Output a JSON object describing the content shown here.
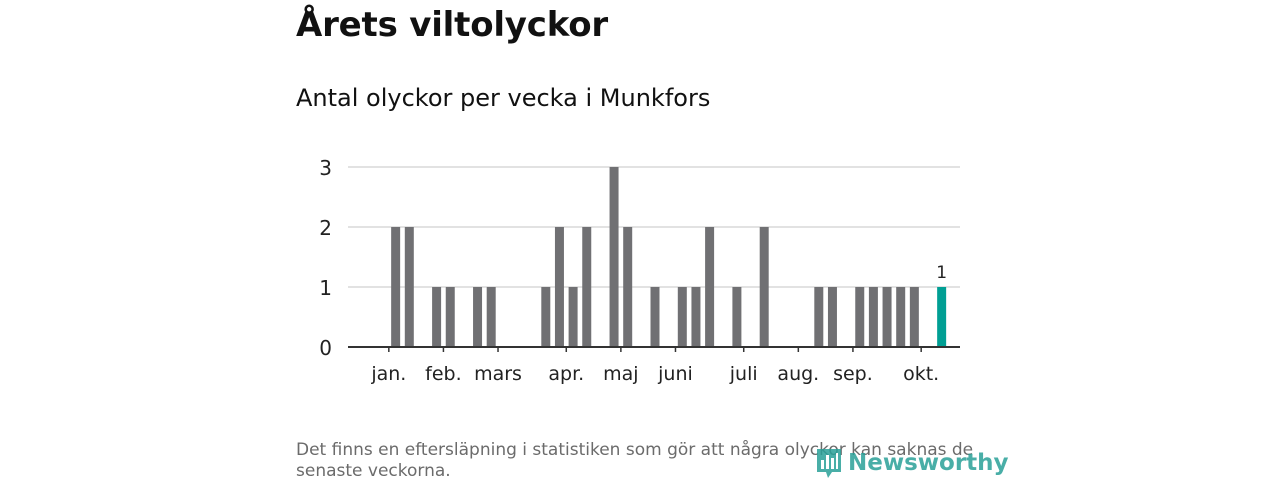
{
  "title": "Årets viltolyckor",
  "subtitle": "Antal olyckor per vecka i Munkfors",
  "footnote": "Det finns en eftersläpning i statistiken som gör att några olyckor kan saknas de senaste veckorna.",
  "logo": {
    "text": "Newsworthy",
    "icon": "newsworthy-logo-icon",
    "color": "#2aa198"
  },
  "colors": {
    "bar": "#707073",
    "highlight": "#009f94",
    "grid": "#d9d9d9",
    "axis": "#333333"
  },
  "chart_data": {
    "type": "bar",
    "title": "Antal olyckor per vecka i Munkfors",
    "xlabel": "",
    "ylabel": "",
    "ylim": [
      0,
      3
    ],
    "yticks": [
      0,
      1,
      2,
      3
    ],
    "grid": true,
    "x": [
      1,
      2,
      3,
      4,
      5,
      6,
      7,
      8,
      9,
      10,
      11,
      12,
      13,
      14,
      15,
      16,
      17,
      18,
      19,
      20,
      21,
      22,
      23,
      24,
      25,
      26,
      27,
      28,
      29,
      30,
      31,
      32,
      33,
      34,
      35,
      36,
      37,
      38,
      39,
      40,
      41,
      42,
      43
    ],
    "values": [
      0,
      2,
      2,
      0,
      1,
      1,
      0,
      1,
      1,
      0,
      0,
      0,
      1,
      2,
      1,
      2,
      0,
      3,
      2,
      0,
      1,
      0,
      1,
      1,
      2,
      0,
      1,
      0,
      2,
      0,
      0,
      0,
      1,
      1,
      0,
      1,
      1,
      1,
      1,
      1,
      0,
      1,
      0
    ],
    "highlight_index": 41,
    "highlight_label": "1",
    "month_labels": [
      {
        "label": "jan.",
        "week": 1.5
      },
      {
        "label": "feb.",
        "week": 5.5
      },
      {
        "label": "mars",
        "week": 9.5
      },
      {
        "label": "apr.",
        "week": 14.5
      },
      {
        "label": "maj",
        "week": 18.5
      },
      {
        "label": "juni",
        "week": 22.5
      },
      {
        "label": "juli",
        "week": 27.5
      },
      {
        "label": "aug.",
        "week": 31.5
      },
      {
        "label": "sep.",
        "week": 35.5
      },
      {
        "label": "okt.",
        "week": 40.5
      }
    ],
    "month_ticks": [
      1.5,
      5.5,
      9.5,
      14.5,
      18.5,
      22.5,
      27.5,
      31.5,
      35.5,
      40.5
    ]
  }
}
